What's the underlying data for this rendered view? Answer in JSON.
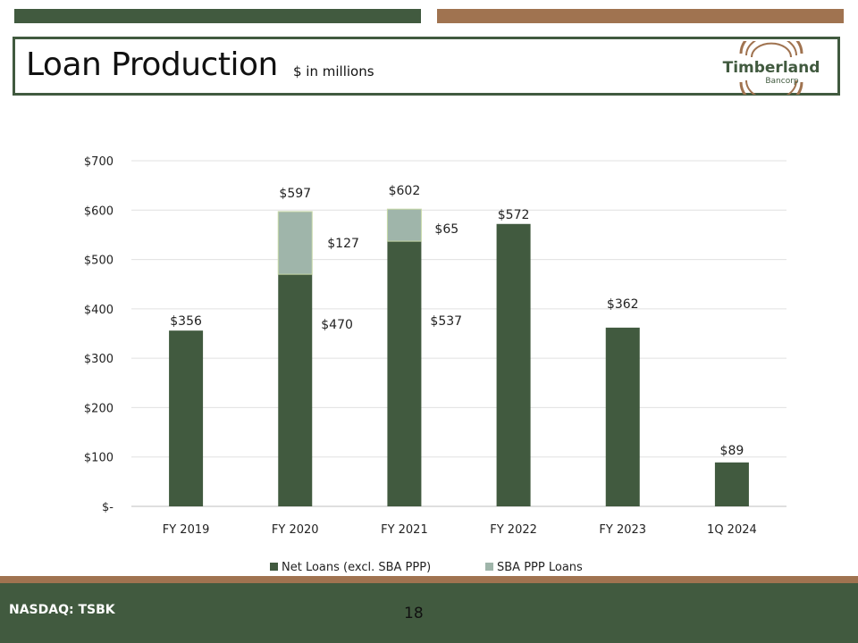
{
  "header": {
    "title": "Loan Production",
    "subtitle": "$ in millions",
    "logo_name": "Timberland",
    "logo_sub": "Bancorp"
  },
  "footer": {
    "ticker": "NASDAQ: TSBK",
    "page_number": "18"
  },
  "colors": {
    "dark_green": "#415a3f",
    "light_green": "#9fb5aa",
    "brown": "#a07350"
  },
  "chart_data": {
    "type": "bar",
    "stacked": true,
    "categories": [
      "FY 2019",
      "FY 2020",
      "FY 2021",
      "FY 2022",
      "FY 2023",
      "1Q 2024"
    ],
    "series": [
      {
        "name": "Net Loans (excl. SBA PPP)",
        "values": [
          356,
          470,
          537,
          572,
          362,
          89
        ],
        "labels": [
          "$356",
          "$470",
          "$537",
          "$572",
          "$362",
          "$89"
        ]
      },
      {
        "name": "SBA PPP Loans",
        "values": [
          0,
          127,
          65,
          0,
          0,
          0
        ],
        "labels": [
          "",
          "$127",
          "$65",
          "",
          "",
          ""
        ]
      }
    ],
    "totals": [
      null,
      597,
      602,
      null,
      null,
      null
    ],
    "total_labels": [
      "",
      "$597",
      "$602",
      "",
      "",
      ""
    ],
    "y_ticks": [
      0,
      100,
      200,
      300,
      400,
      500,
      600,
      700
    ],
    "y_tick_labels": [
      "$-",
      "$100",
      "$200",
      "$300",
      "$400",
      "$500",
      "$600",
      "$700"
    ],
    "ylim": [
      0,
      700
    ],
    "grid": true,
    "legend_position": "bottom"
  }
}
